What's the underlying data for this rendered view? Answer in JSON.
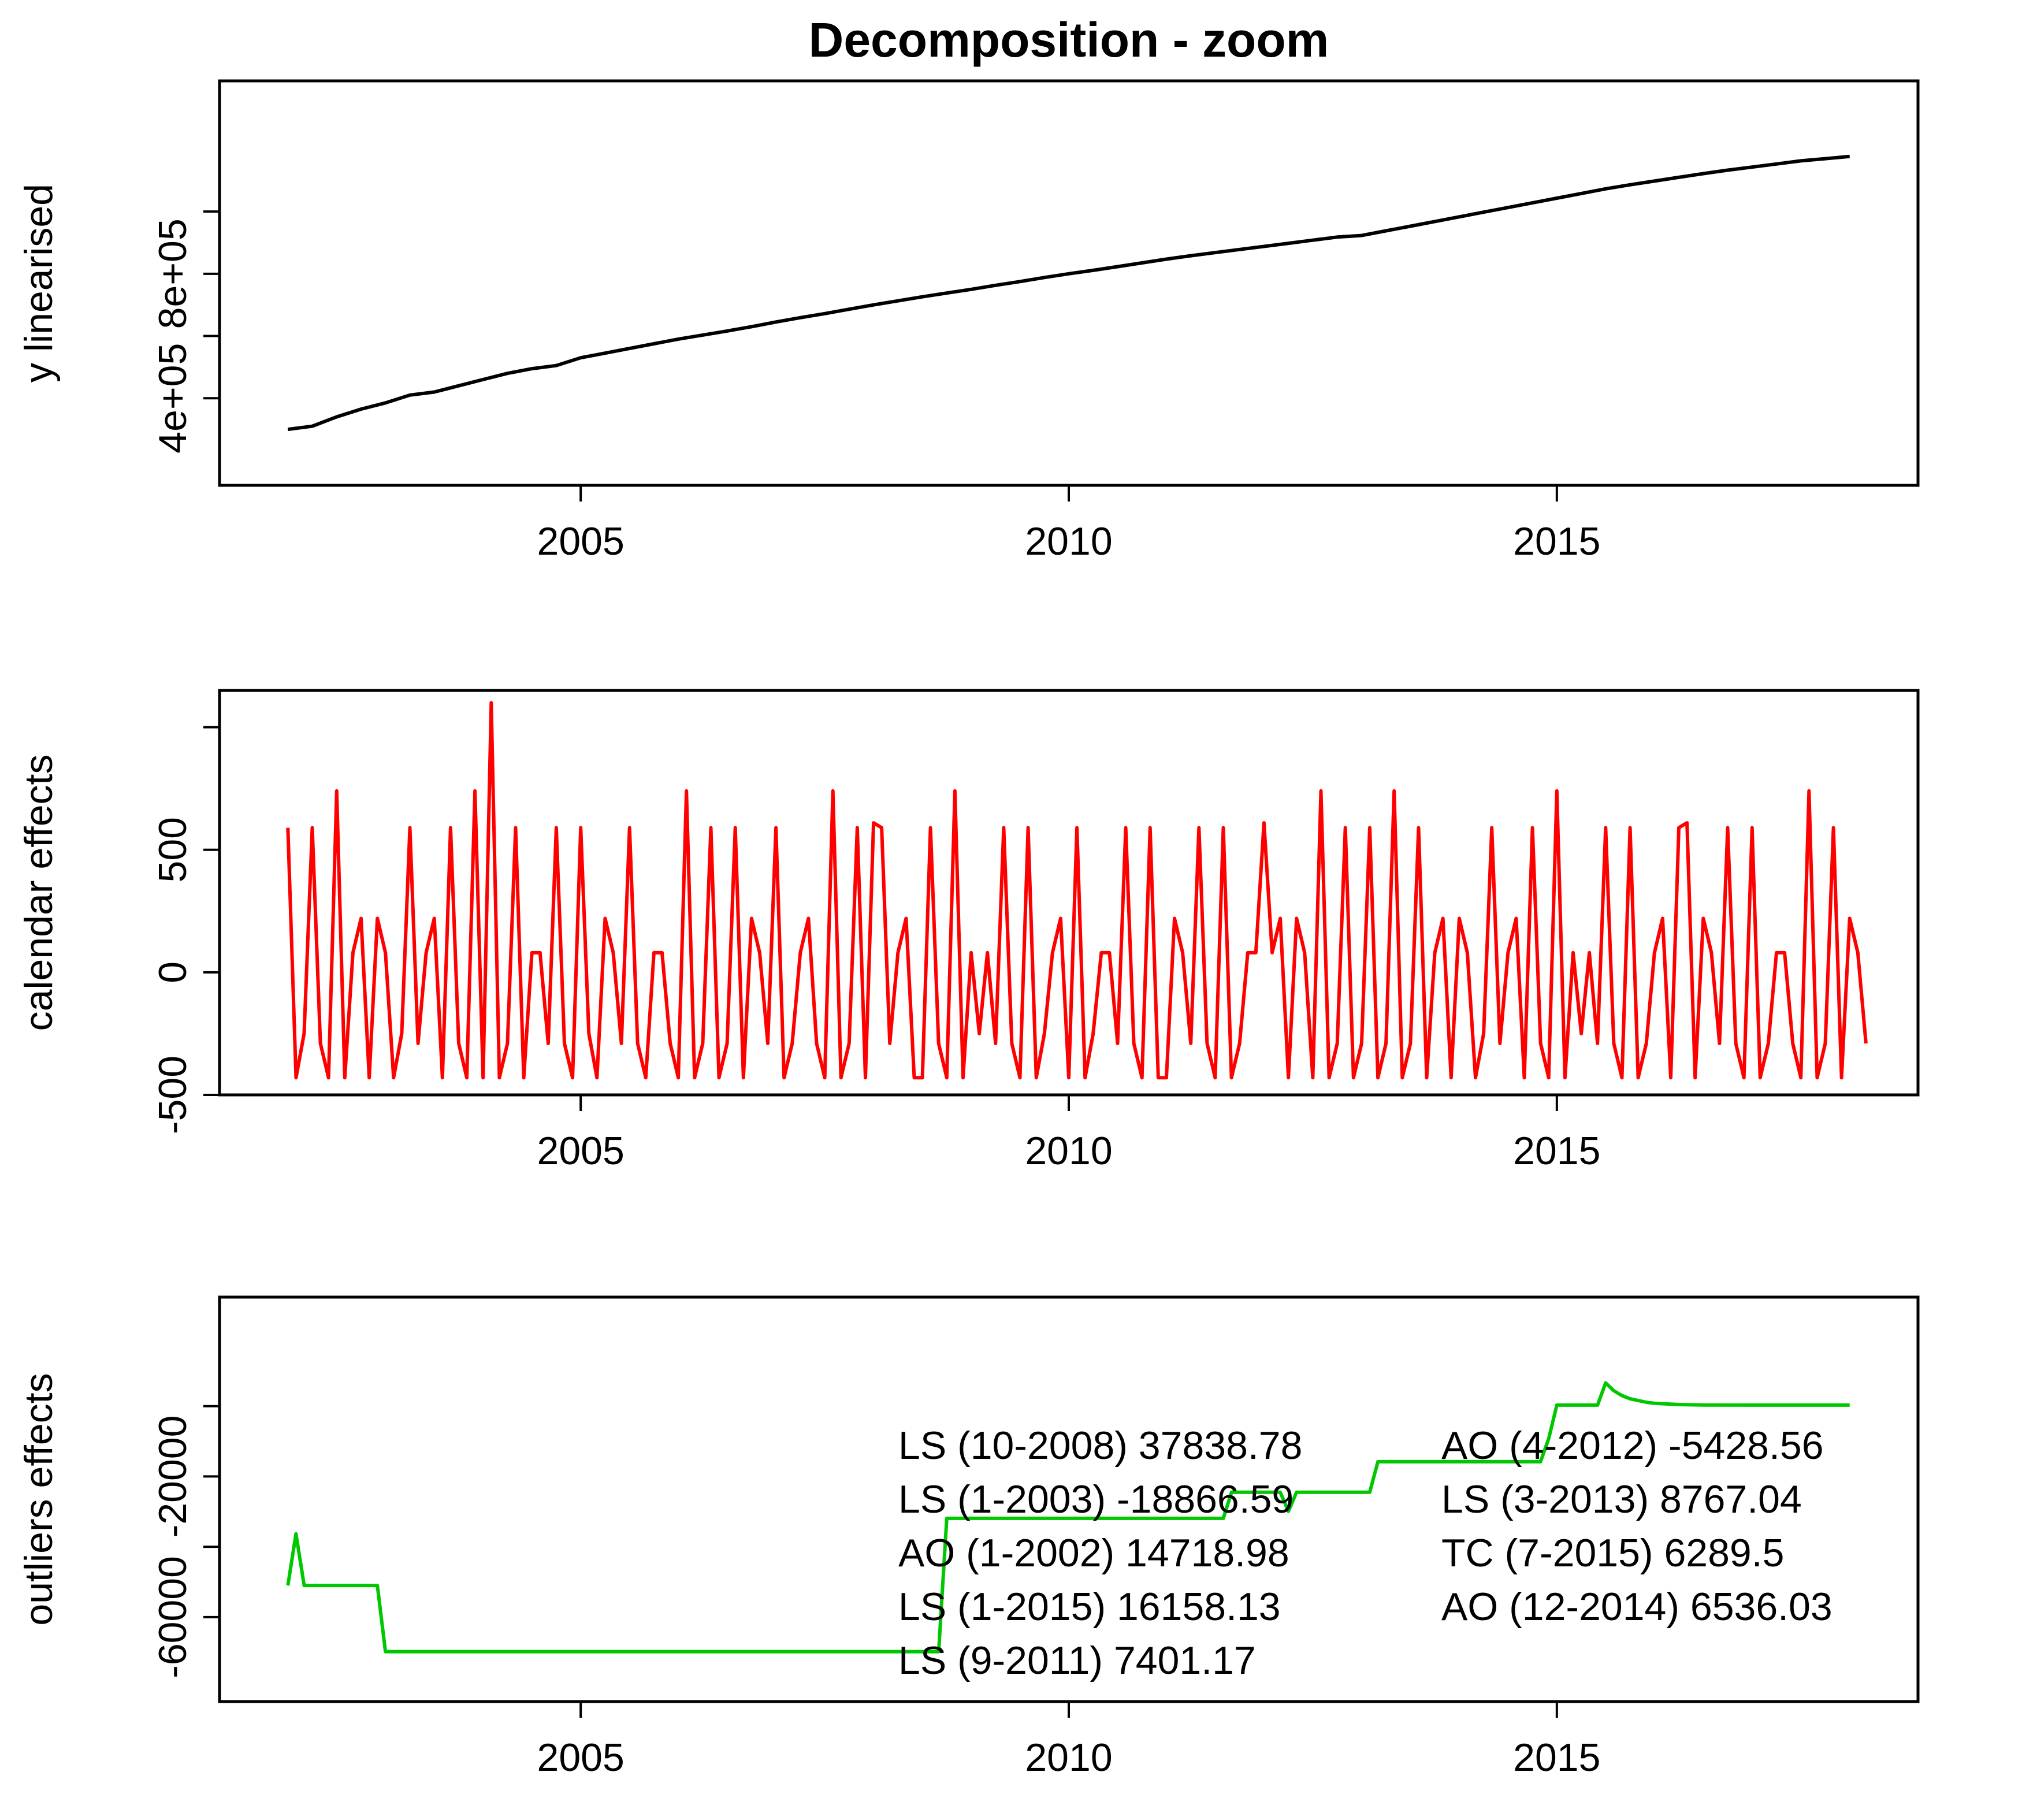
{
  "title": "Decomposition - zoom",
  "chart_data": [
    {
      "type": "line",
      "ylabel": "y linearised",
      "color": "#000000",
      "xlim": [
        2001.3,
        2018.7
      ],
      "ylim": [
        120000,
        1420000
      ],
      "x_ticks": [
        2005,
        2010,
        2015
      ],
      "x_tick_labels": [
        "2005",
        "2010",
        "2015"
      ],
      "y_ticks": [
        400000,
        600000,
        800000,
        1000000
      ],
      "y_tick_labels": [
        "4e+05",
        "",
        "8e+05",
        ""
      ],
      "series": [
        {
          "points": [
            [
              2002.0,
              300000
            ],
            [
              2002.25,
              310000
            ],
            [
              2002.5,
              340000
            ],
            [
              2002.75,
              365000
            ],
            [
              2003.0,
              385000
            ],
            [
              2003.25,
              410000
            ],
            [
              2003.5,
              420000
            ],
            [
              2003.75,
              440000
            ],
            [
              2004.0,
              460000
            ],
            [
              2004.25,
              480000
            ],
            [
              2004.5,
              495000
            ],
            [
              2004.75,
              505000
            ],
            [
              2005.0,
              530000
            ],
            [
              2005.25,
              545000
            ],
            [
              2005.5,
              560000
            ],
            [
              2005.75,
              575000
            ],
            [
              2006.0,
              590000
            ],
            [
              2006.25,
              603000
            ],
            [
              2006.5,
              616000
            ],
            [
              2006.75,
              630000
            ],
            [
              2007.0,
              645000
            ],
            [
              2007.25,
              659000
            ],
            [
              2007.5,
              672000
            ],
            [
              2007.75,
              686000
            ],
            [
              2008.0,
              700000
            ],
            [
              2008.25,
              713000
            ],
            [
              2008.5,
              726000
            ],
            [
              2008.75,
              738000
            ],
            [
              2009.0,
              750000
            ],
            [
              2009.25,
              763000
            ],
            [
              2009.5,
              775000
            ],
            [
              2009.75,
              788000
            ],
            [
              2010.0,
              800000
            ],
            [
              2010.25,
              811000
            ],
            [
              2010.5,
              823000
            ],
            [
              2010.75,
              835000
            ],
            [
              2011.0,
              847000
            ],
            [
              2011.25,
              858000
            ],
            [
              2011.5,
              868000
            ],
            [
              2011.75,
              878000
            ],
            [
              2012.0,
              888000
            ],
            [
              2012.25,
              898000
            ],
            [
              2012.5,
              908000
            ],
            [
              2012.75,
              918000
            ],
            [
              2013.0,
              923000
            ],
            [
              2013.25,
              938000
            ],
            [
              2013.5,
              953000
            ],
            [
              2013.75,
              968000
            ],
            [
              2014.0,
              983000
            ],
            [
              2014.25,
              998000
            ],
            [
              2014.5,
              1013000
            ],
            [
              2014.75,
              1028000
            ],
            [
              2015.0,
              1043000
            ],
            [
              2015.25,
              1058000
            ],
            [
              2015.5,
              1073000
            ],
            [
              2015.75,
              1086000
            ],
            [
              2016.0,
              1098000
            ],
            [
              2016.25,
              1110000
            ],
            [
              2016.5,
              1122000
            ],
            [
              2016.75,
              1133000
            ],
            [
              2017.0,
              1143000
            ],
            [
              2017.25,
              1153000
            ],
            [
              2017.5,
              1163000
            ],
            [
              2017.75,
              1170000
            ],
            [
              2018.0,
              1177000
            ]
          ]
        }
      ]
    },
    {
      "type": "line",
      "ylabel": "calendar effects",
      "color": "#ff0000",
      "xlim": [
        2001.3,
        2018.7
      ],
      "ylim": [
        -500,
        1150
      ],
      "x_ticks": [
        2005,
        2010,
        2015
      ],
      "x_tick_labels": [
        "2005",
        "2010",
        "2015"
      ],
      "y_ticks": [
        -500,
        0,
        500,
        1000
      ],
      "y_tick_labels": [
        "-500",
        "0",
        "500",
        ""
      ],
      "series": [
        {
          "start": 2002.0,
          "step": 0.0833333,
          "values": [
            590,
            -430,
            -250,
            590,
            -290,
            -430,
            740,
            -430,
            80,
            220,
            -430,
            220,
            80,
            -430,
            -250,
            590,
            -290,
            80,
            220,
            -430,
            590,
            -290,
            -430,
            740,
            -430,
            1100,
            -430,
            -290,
            590,
            -430,
            80,
            80,
            -290,
            590,
            -290,
            -430,
            590,
            -250,
            -430,
            220,
            80,
            -290,
            590,
            -290,
            -430,
            80,
            80,
            -290,
            -430,
            740,
            -430,
            -290,
            590,
            -430,
            -290,
            590,
            -430,
            220,
            80,
            -290,
            590,
            -430,
            -290,
            80,
            220,
            -290,
            -430,
            740,
            -430,
            -290,
            590,
            -430,
            610,
            590,
            -290,
            80,
            220,
            -430,
            -430,
            590,
            -290,
            -430,
            740,
            -430,
            80,
            -250,
            80,
            -290,
            590,
            -290,
            -430,
            590,
            -430,
            -250,
            80,
            220,
            -430,
            590,
            -430,
            -250,
            80,
            80,
            -290,
            590,
            -290,
            -430,
            590,
            -430,
            -430,
            220,
            80,
            -290,
            590,
            -290,
            -430,
            590,
            -430,
            -290,
            80,
            80,
            610,
            80,
            220,
            -430,
            220,
            80,
            -430,
            740,
            -430,
            -290,
            590,
            -430,
            -290,
            590,
            -430,
            -290,
            740,
            -430,
            -290,
            590,
            -430,
            80,
            220,
            -430,
            220,
            80,
            -430,
            -250,
            590,
            -290,
            80,
            220,
            -430,
            590,
            -290,
            -430,
            740,
            -430,
            80,
            -250,
            80,
            -290,
            590,
            -290,
            -430,
            590,
            -430,
            -290,
            80,
            220,
            -430,
            590,
            610,
            -430,
            220,
            80,
            -290,
            590,
            -290,
            -430,
            590,
            -430,
            -290,
            80,
            80,
            -290,
            -430,
            740,
            -430,
            -290,
            590,
            -430,
            220,
            80,
            -290
          ]
        }
      ]
    },
    {
      "type": "line",
      "ylabel": "outliers effects",
      "color": "#00c800",
      "xlim": [
        2001.3,
        2018.7
      ],
      "ylim": [
        -84000,
        31000
      ],
      "x_ticks": [
        2005,
        2010,
        2015
      ],
      "x_tick_labels": [
        "2005",
        "2010",
        "2015"
      ],
      "y_ticks": [
        -60000,
        -40000,
        -20000,
        0
      ],
      "y_tick_labels": [
        "-60000",
        "",
        "-20000",
        ""
      ],
      "series": [
        {
          "points": [
            [
              2002.0,
              -51000
            ],
            [
              2002.083,
              -36300
            ],
            [
              2002.167,
              -51000
            ],
            [
              2002.917,
              -51000
            ],
            [
              2003.0,
              -69800
            ],
            [
              2008.667,
              -69800
            ],
            [
              2008.75,
              -31900
            ],
            [
              2011.583,
              -31900
            ],
            [
              2011.667,
              -24500
            ],
            [
              2012.167,
              -24500
            ],
            [
              2012.25,
              -29900
            ],
            [
              2012.333,
              -24500
            ],
            [
              2013.083,
              -24500
            ],
            [
              2013.167,
              -15800
            ],
            [
              2014.833,
              -15800
            ],
            [
              2014.917,
              -9200
            ],
            [
              2015.0,
              300
            ],
            [
              2015.417,
              300
            ],
            [
              2015.5,
              6600
            ],
            [
              2015.583,
              4400
            ],
            [
              2015.667,
              3000
            ],
            [
              2015.75,
              2100
            ],
            [
              2015.833,
              1600
            ],
            [
              2015.917,
              1100
            ],
            [
              2016.0,
              800
            ],
            [
              2016.25,
              450
            ],
            [
              2016.5,
              330
            ],
            [
              2017.0,
              300
            ],
            [
              2018.0,
              300
            ]
          ]
        }
      ],
      "annotations_left": [
        "LS (10-2008) 37838.78",
        "LS (1-2003) -18866.59",
        "AO (1-2002) 14718.98",
        "LS (1-2015) 16158.13",
        "LS (9-2011) 7401.17"
      ],
      "annotations_right": [
        "AO (4-2012) -5428.56",
        "LS (3-2013) 8767.04",
        "TC (7-2015) 6289.5",
        "AO (12-2014) 6536.03"
      ]
    }
  ]
}
